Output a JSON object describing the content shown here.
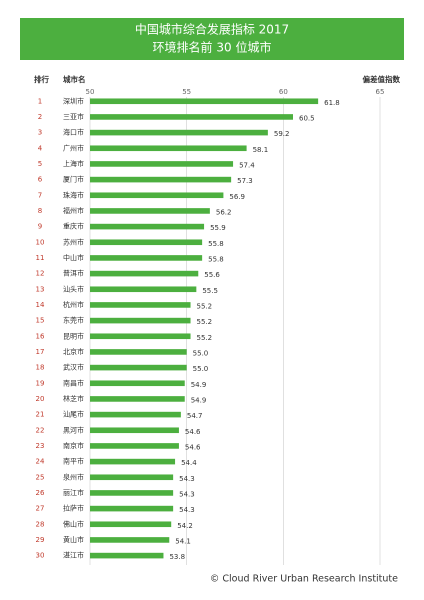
{
  "chart_data": {
    "type": "hbar",
    "title": "中国城市综合发展指标 2017",
    "subtitle": "环境排名前 30 位城市",
    "rank_header": "排行",
    "category_header": "城市名",
    "xlabel": "偏差值指数",
    "ranks": [
      1,
      2,
      3,
      4,
      5,
      6,
      7,
      8,
      9,
      10,
      11,
      12,
      13,
      14,
      15,
      16,
      17,
      18,
      19,
      20,
      21,
      22,
      23,
      24,
      25,
      26,
      27,
      28,
      29,
      30
    ],
    "categories": [
      "深圳市",
      "三亚市",
      "海口市",
      "广州市",
      "上海市",
      "厦门市",
      "珠海市",
      "福州市",
      "重庆市",
      "苏州市",
      "中山市",
      "普洱市",
      "汕头市",
      "杭州市",
      "东莞市",
      "昆明市",
      "北京市",
      "武汉市",
      "南昌市",
      "林芝市",
      "汕尾市",
      "黑河市",
      "南京市",
      "南平市",
      "泉州市",
      "丽江市",
      "拉萨市",
      "佛山市",
      "黄山市",
      "湛江市"
    ],
    "values": [
      61.8,
      60.5,
      59.2,
      58.1,
      57.4,
      57.3,
      56.9,
      56.2,
      55.9,
      55.8,
      55.8,
      55.6,
      55.5,
      55.2,
      55.2,
      55.2,
      55.0,
      55.0,
      54.9,
      54.9,
      54.7,
      54.6,
      54.6,
      54.4,
      54.3,
      54.3,
      54.3,
      54.2,
      54.1,
      53.8
    ],
    "value_labels": [
      "61.8",
      "60.5",
      "59.2",
      "58.1",
      "57.4",
      "57.3",
      "56.9",
      "56.2",
      "55.9",
      "55.8",
      "55.8",
      "55.6",
      "55.5",
      "55.2",
      "55.2",
      "55.2",
      "55.0",
      "55.0",
      "54.9",
      "54.9",
      "54.7",
      "54.6",
      "54.6",
      "54.4",
      "54.3",
      "54.3",
      "54.3",
      "54.2",
      "54.1",
      "53.8"
    ],
    "color": "#4caf3f",
    "rank_color": "#c0392b",
    "xlim": [
      50,
      65
    ],
    "xticks": [
      50,
      55,
      60,
      65
    ],
    "grid": true,
    "footer": "© Cloud River Urban Research Institute"
  }
}
